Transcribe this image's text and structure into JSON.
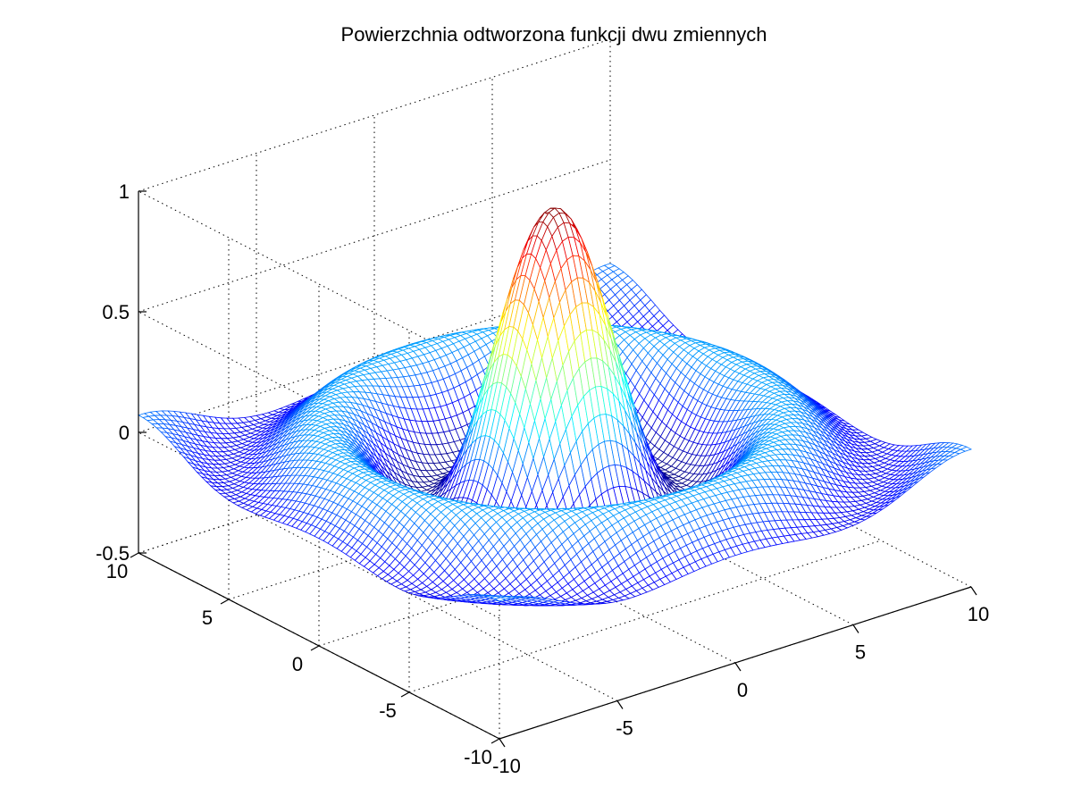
{
  "chart_data": {
    "type": "surface-mesh",
    "title": "Powierzchnia odtworzona funkcji dwu zmiennych",
    "function": "sin(sqrt(x^2+y^2)) / sqrt(x^2+y^2)",
    "x_range": [
      -10,
      10
    ],
    "y_range": [
      -10,
      10
    ],
    "z_range": [
      -0.5,
      1
    ],
    "mesh_resolution": 0.25,
    "grid": true,
    "colormap": "jet",
    "ticks": {
      "x": [
        "-10",
        "-5",
        "0",
        "5",
        "10"
      ],
      "y": [
        "-10",
        "-5",
        "0",
        "5",
        "10"
      ],
      "z": [
        "-0.5",
        "0",
        "0.5",
        "1"
      ]
    },
    "tick_values": {
      "x": [
        -10,
        -5,
        0,
        5,
        10
      ],
      "y": [
        -10,
        -5,
        0,
        5,
        10
      ],
      "z": [
        -0.5,
        0,
        0.5,
        1
      ]
    }
  }
}
